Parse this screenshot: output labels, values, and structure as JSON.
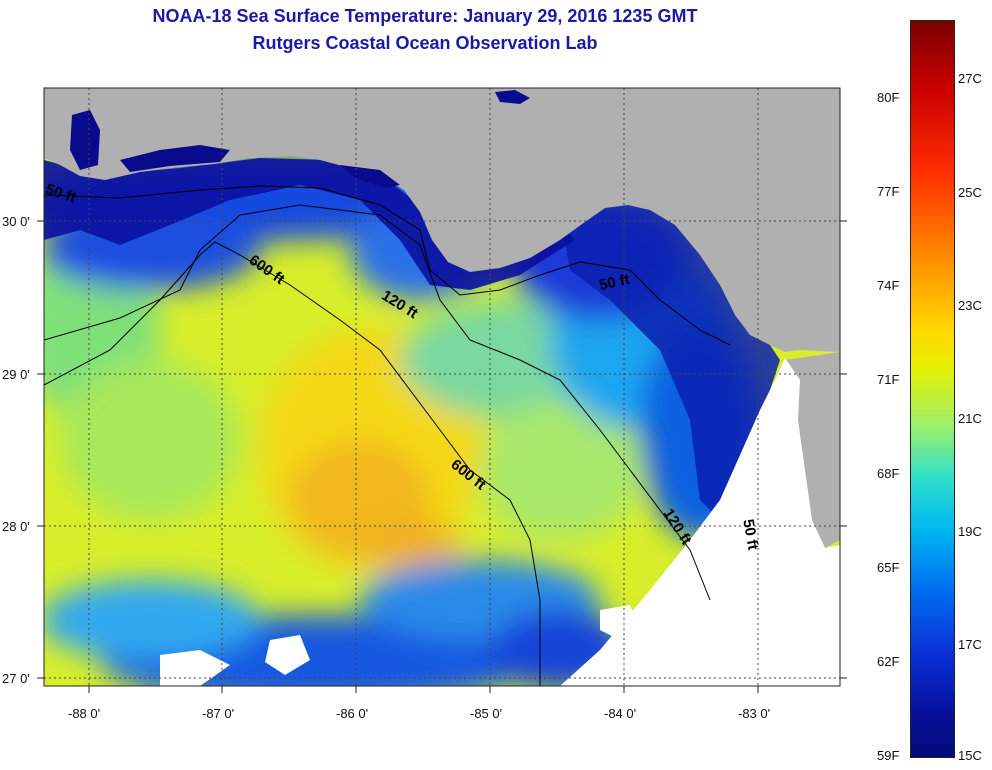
{
  "title": {
    "line1": "NOAA-18 Sea Surface Temperature:  January 29, 2016 1235 GMT",
    "line2": "Rutgers Coastal Ocean Observation Lab"
  },
  "map": {
    "lon_ticks": [
      "-88 0'",
      "-87 0'",
      "-86 0'",
      "-85 0'",
      "-84 0'",
      "-83 0'"
    ],
    "lat_ticks": [
      "30 0'",
      "29 0'",
      "28 0'",
      "27 0'"
    ],
    "depth_contours": [
      "50 ft",
      "600 ft",
      "120 ft",
      "50 ft",
      "600 ft",
      "120 ft",
      "50 ft"
    ]
  },
  "colorbar": {
    "fahrenheit": [
      "80F",
      "77F",
      "74F",
      "71F",
      "68F",
      "65F",
      "62F",
      "59F"
    ],
    "celsius": [
      "27C",
      "25C",
      "23C",
      "21C",
      "19C",
      "17C",
      "15C"
    ]
  },
  "colors": {
    "land": "#b0b0b0",
    "cold": "#0a0a8c",
    "warm": "#f5e800",
    "title": "#1a1aa6"
  }
}
